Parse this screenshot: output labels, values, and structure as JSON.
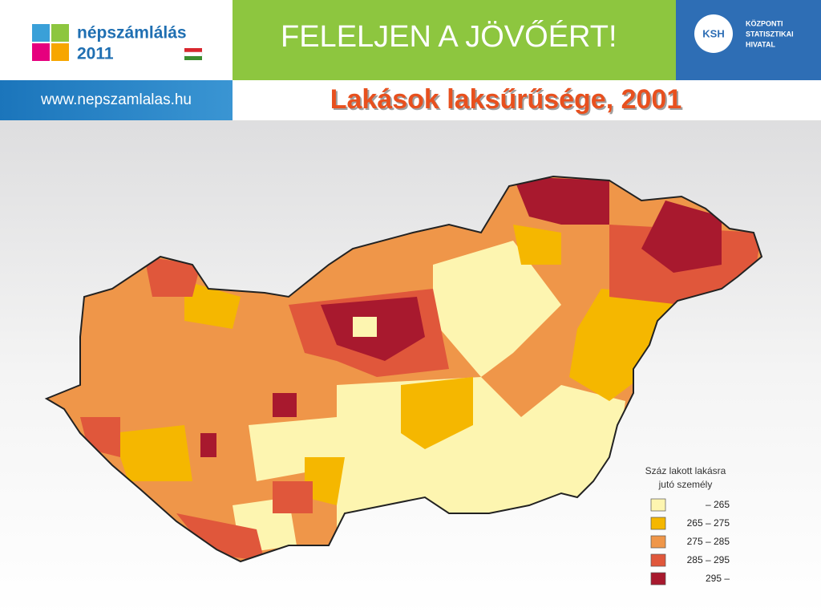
{
  "header": {
    "logo_text": "népszámlálás",
    "logo_year": "2011",
    "url": "www.nepszamlalas.hu",
    "slogan": "FELELJEN A JÖVŐÉRT!",
    "ksh_abbr": "KSH",
    "ksh_name": [
      "KÖZPONTI",
      "STATISZTIKAI",
      "HIVATAL"
    ]
  },
  "title": "Lakások laksűrűsége, 2001",
  "legend": {
    "title": [
      "Száz lakott lakásra",
      "jutó személy"
    ],
    "items": [
      {
        "label": "– 265",
        "color": "#fdf5b0"
      },
      {
        "label": "265 – 275",
        "color": "#f5b700"
      },
      {
        "label": "275 – 285",
        "color": "#ef9649"
      },
      {
        "label": "285 – 295",
        "color": "#e0573b"
      },
      {
        "label": "295 –",
        "color": "#a8192e"
      }
    ]
  }
}
